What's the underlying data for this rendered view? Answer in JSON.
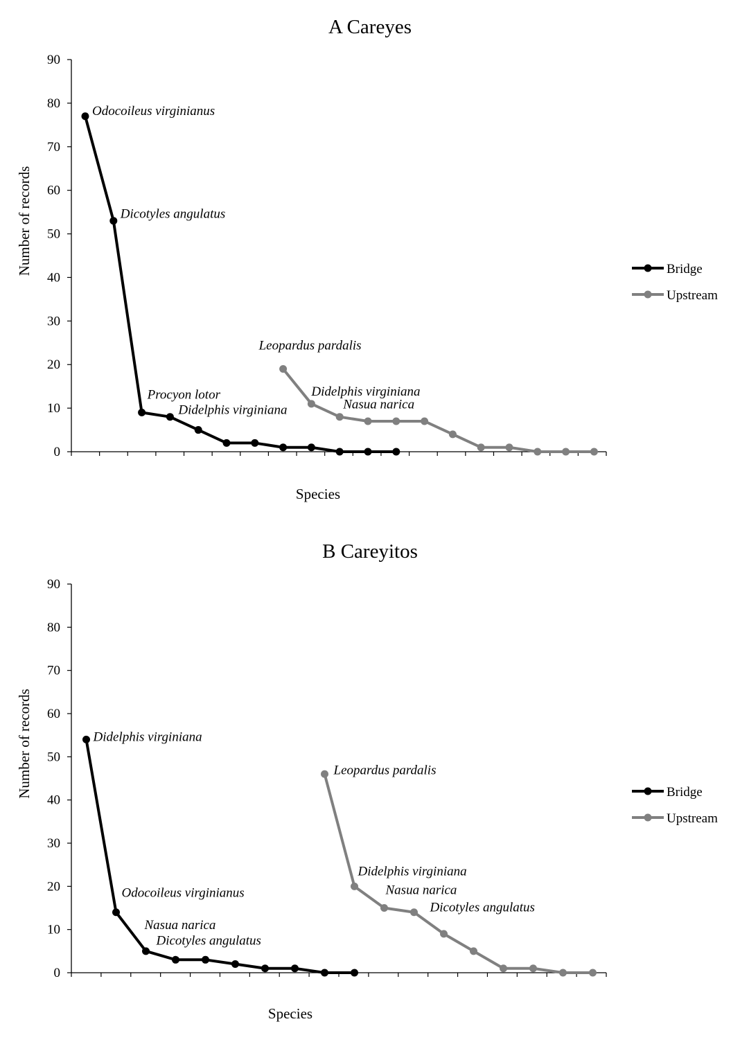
{
  "chart_data": [
    {
      "type": "line",
      "title": "A Careyes",
      "xlabel": "Species",
      "ylabel": "Number of records",
      "ylim": [
        0,
        90
      ],
      "yticks": [
        0,
        10,
        20,
        30,
        40,
        50,
        60,
        70,
        80,
        90
      ],
      "grid": false,
      "legend": "right",
      "series": [
        {
          "name": "Bridge",
          "color": "#000000",
          "x": [
            1,
            2,
            3,
            4,
            5,
            6,
            7,
            8,
            9,
            10,
            11,
            12
          ],
          "values": [
            77,
            53,
            9,
            8,
            5,
            2,
            2,
            1,
            1,
            0,
            0,
            0
          ]
        },
        {
          "name": "Upstream",
          "color": "#808080",
          "x": [
            8,
            9,
            10,
            11,
            12,
            13,
            14,
            15,
            16,
            17,
            18,
            19
          ],
          "values": [
            19,
            11,
            8,
            7,
            7,
            7,
            4,
            1,
            1,
            0,
            0,
            0
          ]
        }
      ],
      "annotations": [
        {
          "text": "Odocoileus virginianus",
          "x": 1,
          "y": 77
        },
        {
          "text": "Dicotyles angulatus",
          "x": 2,
          "y": 53
        },
        {
          "text": "Procyon lotor",
          "x": 3,
          "y": 9
        },
        {
          "text": "Didelphis virginiana",
          "x": 4,
          "y": 8
        },
        {
          "text": "Leopardus pardalis",
          "x": 8,
          "y": 19
        },
        {
          "text": "Didelphis virginiana",
          "x": 9,
          "y": 11
        },
        {
          "text": "Nasua narica",
          "x": 10,
          "y": 8
        }
      ]
    },
    {
      "type": "line",
      "title": "B Careyitos",
      "xlabel": "Species",
      "ylabel": "Number of records",
      "ylim": [
        0,
        90
      ],
      "yticks": [
        0,
        10,
        20,
        30,
        40,
        50,
        60,
        70,
        80,
        90
      ],
      "grid": false,
      "legend": "right",
      "series": [
        {
          "name": "Bridge",
          "color": "#000000",
          "x": [
            1,
            2,
            3,
            4,
            5,
            6,
            7,
            8,
            9,
            10
          ],
          "values": [
            54,
            14,
            5,
            3,
            3,
            2,
            1,
            1,
            0,
            0
          ]
        },
        {
          "name": "Upstream",
          "color": "#808080",
          "x": [
            9,
            10,
            11,
            12,
            13,
            14,
            15,
            16,
            17,
            18
          ],
          "values": [
            46,
            20,
            15,
            14,
            9,
            5,
            1,
            1,
            0,
            0
          ]
        }
      ],
      "annotations": [
        {
          "text": "Didelphis virginiana",
          "x": 1,
          "y": 54
        },
        {
          "text": "Odocoileus virginianus",
          "x": 2,
          "y": 14
        },
        {
          "text": "Nasua narica",
          "x": 3,
          "y": 5
        },
        {
          "text": "Dicotyles angulatus",
          "x": 4,
          "y": 3
        },
        {
          "text": "Leopardus pardalis",
          "x": 9,
          "y": 46
        },
        {
          "text": "Didelphis virginiana",
          "x": 10,
          "y": 20
        },
        {
          "text": "Nasua narica",
          "x": 11,
          "y": 15
        },
        {
          "text": "Dicotyles angulatus",
          "x": 12,
          "y": 14
        }
      ]
    }
  ]
}
